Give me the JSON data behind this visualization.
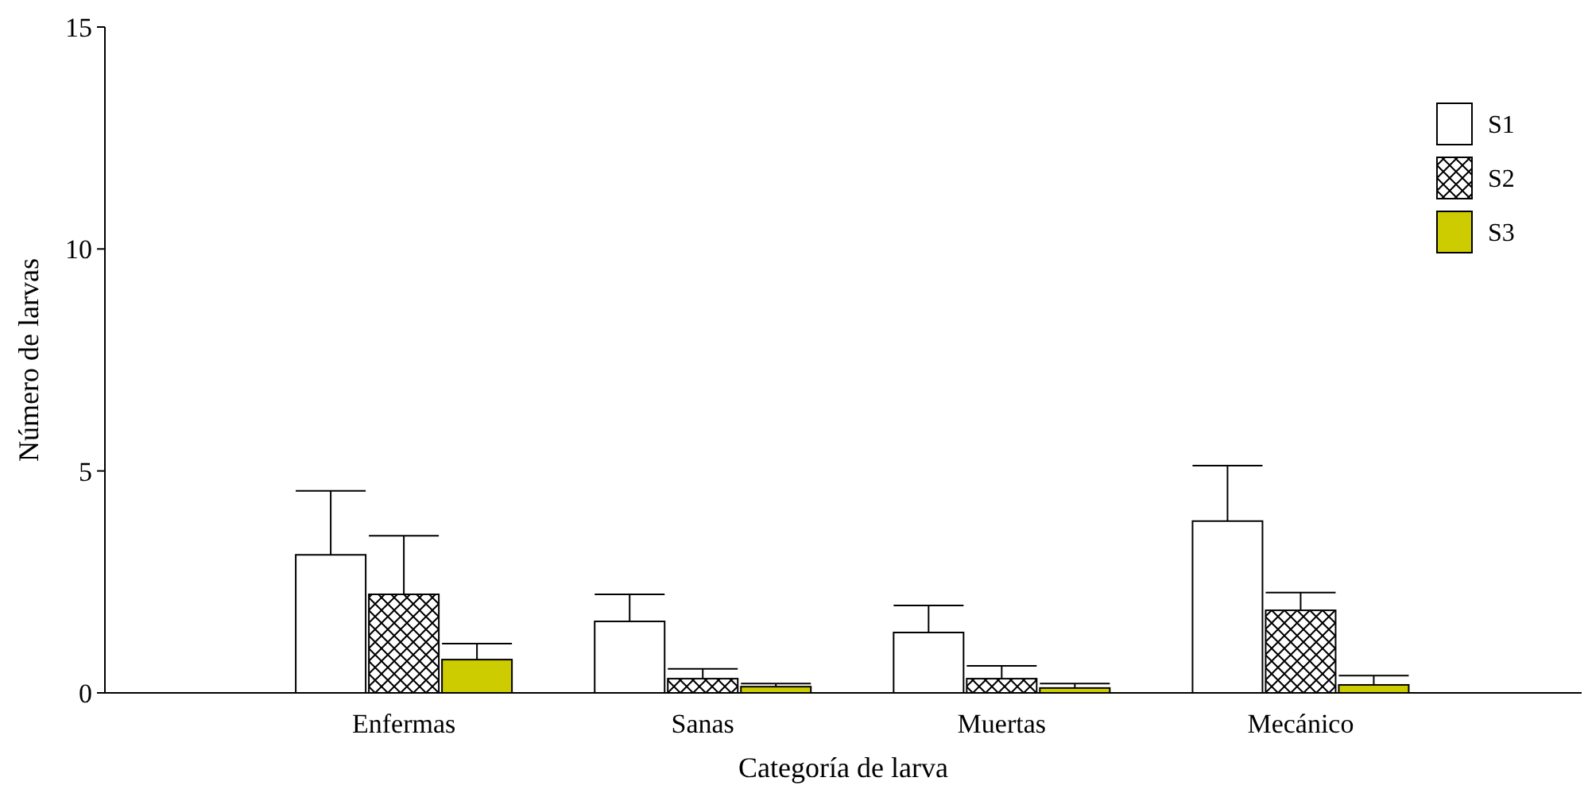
{
  "chart_data": {
    "type": "bar",
    "xlabel": "Categoría de larva",
    "ylabel": "Número de larvas",
    "categories": [
      "Enfermas",
      "Sanas",
      "Muertas",
      "Mecánico"
    ],
    "ylim": [
      0,
      15
    ],
    "yticks": [
      0,
      5,
      10,
      15
    ],
    "grid": false,
    "legend": "top right",
    "series": [
      {
        "name": "S1",
        "color": "#ffffff",
        "values": [
          3.11,
          1.61,
          1.36,
          3.87
        ],
        "errors": [
          [
            3.11,
            4.55
          ],
          [
            1.61,
            2.22
          ],
          [
            1.36,
            1.97
          ],
          [
            3.87,
            5.12
          ]
        ]
      },
      {
        "name": "S2",
        "color": "#000000",
        "values": [
          2.22,
          0.32,
          0.32,
          1.86
        ],
        "errors": [
          [
            2.22,
            3.54
          ],
          [
            0.32,
            0.54
          ],
          [
            0.32,
            0.61
          ],
          [
            1.86,
            2.26
          ]
        ]
      },
      {
        "name": "S3",
        "color": "#cccc00",
        "values": [
          0.75,
          0.14,
          0.11,
          0.18
        ],
        "errors": [
          [
            0.75,
            1.11
          ],
          [
            0.14,
            0.21
          ],
          [
            0.11,
            0.21
          ],
          [
            0.18,
            0.39
          ]
        ]
      }
    ]
  }
}
